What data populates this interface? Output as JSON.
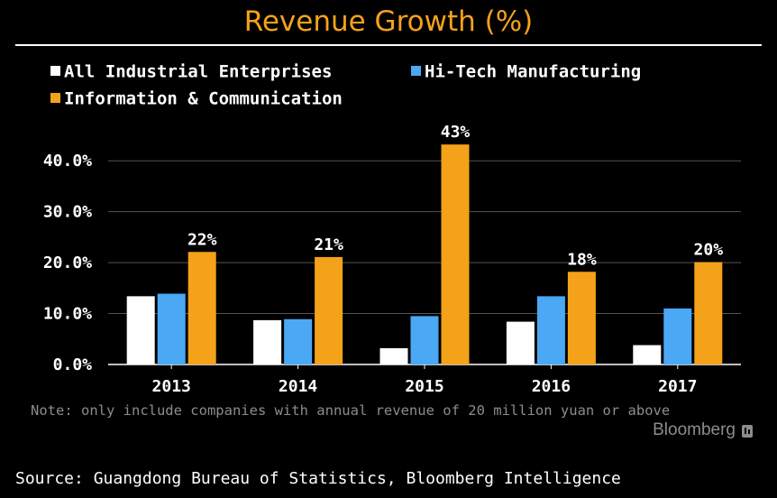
{
  "title": "Revenue Growth (%)",
  "note": "Note: only include companies with annual revenue of 20 million yuan or above",
  "brand": "Bloomberg",
  "source": "Source: Guangdong Bureau of Statistics, Bloomberg Intelligence",
  "colors": {
    "background": "#000000",
    "title": "#f5a21b",
    "all_industrial": "#ffffff",
    "hi_tech": "#4aa8f5",
    "info_comm": "#f5a21b",
    "grid": "#555555",
    "note": "#8c8c8c"
  },
  "chart_data": {
    "type": "bar",
    "title": "Revenue Growth (%)",
    "categories": [
      "2013",
      "2014",
      "2015",
      "2016",
      "2017"
    ],
    "series": [
      {
        "name": "All Industrial Enterprises",
        "values": [
          13.4,
          8.7,
          3.2,
          8.4,
          3.8
        ]
      },
      {
        "name": "Hi-Tech Manufacturing",
        "values": [
          13.9,
          8.9,
          9.5,
          13.4,
          11.0
        ]
      },
      {
        "name": "Information & Communication",
        "values": [
          22.1,
          21.1,
          43.2,
          18.2,
          20.1
        ]
      }
    ],
    "data_labels": [
      "22%",
      "21%",
      "43%",
      "18%",
      "20%"
    ],
    "y_ticks": [
      0,
      10,
      20,
      30,
      40
    ],
    "y_tick_labels": [
      "0.0%",
      "10.0%",
      "20.0%",
      "30.0%",
      "40.0%"
    ],
    "ylim": [
      0,
      45
    ],
    "grid": true,
    "legend_position": "top-left"
  }
}
